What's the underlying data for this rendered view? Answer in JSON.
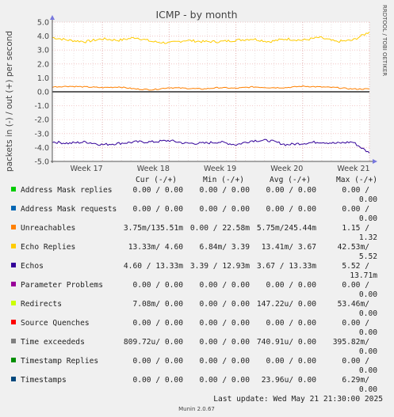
{
  "title": "ICMP - by month",
  "watermark": "RRDTOOL / TOBI OETIKER",
  "footer": "Munin 2.0.67",
  "last_update": "Last update: Wed May 21 21:30:00 2025",
  "legend_header": {
    "cur": "Cur (-/+)",
    "min": "Min (-/+)",
    "avg": "Avg (-/+)",
    "max": "Max (-/+)"
  },
  "legend": [
    {
      "name": "Address Mask replies",
      "color": "#00cc00",
      "cur": "0.00 /  0.00",
      "min": "0.00 /  0.00",
      "avg": "0.00 /  0.00",
      "max_out": "0.00 /",
      "max_in": "0.00"
    },
    {
      "name": "Address Mask requests",
      "color": "#0066b3",
      "cur": "0.00 /  0.00",
      "min": "0.00 /  0.00",
      "avg": "0.00 /  0.00",
      "max_out": "0.00 /",
      "max_in": "0.00"
    },
    {
      "name": "Unreachables",
      "color": "#ff8000",
      "cur": "3.75m/135.51m",
      "min": "0.00 / 22.58m",
      "avg": "5.75m/245.44m",
      "max_out": "1.15 /",
      "max_in": "1.32"
    },
    {
      "name": "Echo Replies",
      "color": "#ffcc00",
      "cur": "13.33m/  4.60",
      "min": "6.84m/  3.39",
      "avg": "13.41m/  3.67",
      "max_out": "42.53m/",
      "max_in": "5.52"
    },
    {
      "name": "Echos",
      "color": "#330099",
      "cur": "4.60 / 13.33m",
      "min": "3.39 / 12.93m",
      "avg": "3.67 / 13.33m",
      "max_out": "5.52 /",
      "max_in": "13.71m"
    },
    {
      "name": "Parameter Problems",
      "color": "#990099",
      "cur": "0.00 /  0.00",
      "min": "0.00 /  0.00",
      "avg": "0.00 /  0.00",
      "max_out": "0.00 /",
      "max_in": "0.00"
    },
    {
      "name": "Redirects",
      "color": "#ccff00",
      "cur": "7.08m/  0.00",
      "min": "0.00 /  0.00",
      "avg": "147.22u/  0.00",
      "max_out": "53.46m/",
      "max_in": "0.00"
    },
    {
      "name": "Source Quenches",
      "color": "#ff0000",
      "cur": "0.00 /  0.00",
      "min": "0.00 /  0.00",
      "avg": "0.00 /  0.00",
      "max_out": "0.00 /",
      "max_in": "0.00"
    },
    {
      "name": "Time exceededs",
      "color": "#808080",
      "cur": "809.72u/  0.00",
      "min": "0.00 /  0.00",
      "avg": "740.91u/  0.00",
      "max_out": "395.82m/",
      "max_in": "0.00"
    },
    {
      "name": "Timestamp Replies",
      "color": "#008f00",
      "cur": "0.00 /  0.00",
      "min": "0.00 /  0.00",
      "avg": "0.00 /  0.00",
      "max_out": "0.00 /",
      "max_in": "0.00"
    },
    {
      "name": "Timestamps",
      "color": "#00487d",
      "cur": "0.00 /  0.00",
      "min": "0.00 /  0.00",
      "avg": "23.96u/  0.00",
      "max_out": "6.29m/",
      "max_in": "0.00"
    }
  ],
  "chart_data": {
    "type": "line",
    "title": "ICMP - by month",
    "ylabel": "packets in (-) / out (+) per second",
    "ylim": [
      -5.0,
      5.0
    ],
    "yticks": [
      "5.0",
      "4.0",
      "3.0",
      "2.0",
      "1.0",
      "0.0",
      "-1.0",
      "-2.0",
      "-3.0",
      "-4.0",
      "-5.0"
    ],
    "ytick_values": [
      5,
      4,
      3,
      2,
      1,
      0,
      -1,
      -2,
      -3,
      -4,
      -5
    ],
    "x_range_weeks": [
      16.25,
      21.0
    ],
    "xticks": [
      {
        "label": "Week 17",
        "value": 17
      },
      {
        "label": "Week 18",
        "value": 18
      },
      {
        "label": "Week 19",
        "value": 19
      },
      {
        "label": "Week 20",
        "value": 20
      },
      {
        "label": "Week 21",
        "value": 21
      }
    ],
    "grid": true,
    "series": [
      {
        "name": "Echo Replies",
        "color": "#ffcc00",
        "x": [
          16.25,
          16.5,
          16.75,
          17,
          17.25,
          17.5,
          17.75,
          18,
          18.25,
          18.5,
          18.75,
          19,
          19.25,
          19.5,
          19.75,
          20,
          20.25,
          20.5,
          20.75,
          21
        ],
        "values": [
          3.9,
          3.7,
          3.6,
          3.8,
          3.7,
          3.9,
          3.6,
          3.5,
          3.7,
          3.6,
          3.6,
          3.7,
          3.8,
          3.6,
          3.8,
          3.7,
          3.9,
          3.6,
          3.7,
          4.3
        ]
      },
      {
        "name": "Echos",
        "color": "#330099",
        "x": [
          16.25,
          16.5,
          16.75,
          17,
          17.25,
          17.5,
          17.75,
          18,
          18.25,
          18.5,
          18.75,
          19,
          19.25,
          19.5,
          19.75,
          20,
          20.25,
          20.5,
          20.75,
          21
        ],
        "values": [
          -3.6,
          -3.7,
          -3.6,
          -3.8,
          -3.7,
          -3.6,
          -3.6,
          -3.5,
          -3.7,
          -3.7,
          -3.6,
          -3.8,
          -3.5,
          -3.5,
          -3.8,
          -3.7,
          -3.6,
          -3.7,
          -3.6,
          -4.4
        ]
      },
      {
        "name": "Unreachables",
        "color": "#ff8000",
        "x": [
          16.25,
          16.5,
          16.75,
          17,
          17.25,
          17.5,
          17.75,
          18,
          18.25,
          18.5,
          18.75,
          19,
          19.25,
          19.5,
          19.75,
          20,
          20.25,
          20.5,
          20.75,
          21
        ],
        "values": [
          0.35,
          0.4,
          0.35,
          0.3,
          0.35,
          0.2,
          0.15,
          0.3,
          0.25,
          0.2,
          0.3,
          0.25,
          0.35,
          0.3,
          0.3,
          0.4,
          0.35,
          0.3,
          0.2,
          0.2
        ]
      },
      {
        "name": "Time exceededs",
        "color": "#808080",
        "x": [
          16.25,
          21
        ],
        "values": [
          0.0,
          0.0
        ]
      }
    ]
  }
}
